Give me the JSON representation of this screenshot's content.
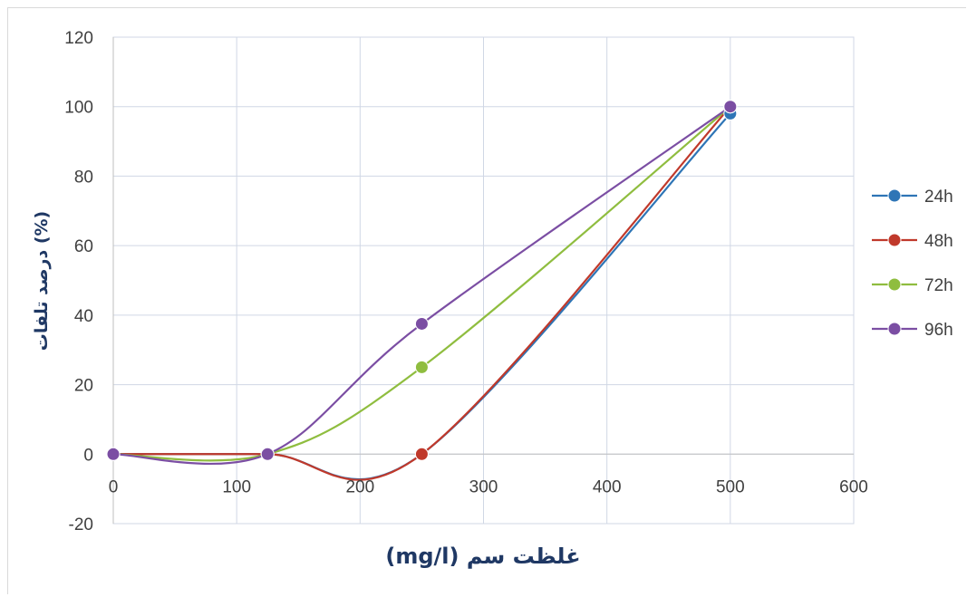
{
  "chart_data": {
    "type": "line",
    "title": "",
    "xlabel": "(mg/l) غلظت سم",
    "ylabel": "درصد تلفات (%)",
    "xlim": [
      0,
      600
    ],
    "ylim": [
      -20,
      120
    ],
    "xticks": [
      0,
      100,
      200,
      300,
      400,
      500,
      600
    ],
    "yticks": [
      -20,
      0,
      20,
      40,
      60,
      80,
      100,
      120
    ],
    "grid": true,
    "legend_position": "right",
    "x": [
      0,
      125,
      250,
      500
    ],
    "series": [
      {
        "name": "24h",
        "color": "#2e75b6",
        "values": [
          0,
          0,
          0,
          98
        ]
      },
      {
        "name": "48h",
        "color": "#c0392b",
        "values": [
          0,
          0,
          0,
          100
        ]
      },
      {
        "name": "72h",
        "color": "#8fbd3f",
        "values": [
          0,
          0,
          25,
          100
        ]
      },
      {
        "name": "96h",
        "color": "#7b4ea3",
        "values": [
          0,
          0,
          37.5,
          100
        ]
      }
    ]
  }
}
